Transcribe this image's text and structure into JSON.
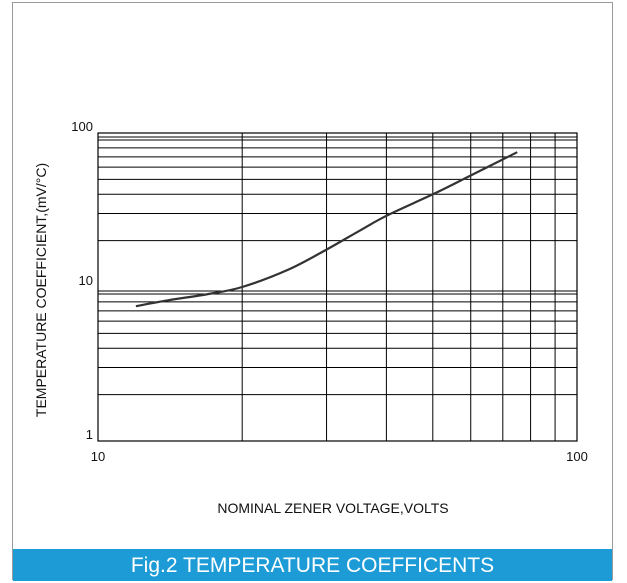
{
  "caption": "Fig.2 TEMPERATURE COEFFICENTS",
  "colors": {
    "caption_bg": "#1c9bd7",
    "grid": "#000000",
    "curve": "#333333",
    "border": "#9a9a9a"
  },
  "chart_data": {
    "type": "line",
    "title": "",
    "xlabel": "NOMINAL ZENER VOLTAGE,VOLTS",
    "ylabel": "TEMPERATURE COEFFICIENT,(mV/°C)",
    "xscale": "log",
    "yscale": "log",
    "xlim": [
      10,
      100
    ],
    "ylim": [
      1,
      100
    ],
    "grid": true,
    "x_ticks": [
      10,
      100
    ],
    "x_tick_labels": [
      "10",
      "100"
    ],
    "y_ticks": [
      1,
      10,
      100
    ],
    "y_tick_labels": [
      "1",
      "10",
      "100"
    ],
    "series": [
      {
        "x": [
          12,
          14,
          17,
          20,
          25,
          30,
          35,
          40,
          50,
          60,
          75
        ],
        "y": [
          7.5,
          8.2,
          9.0,
          10.0,
          13.0,
          17.5,
          23,
          29,
          40,
          53,
          75
        ]
      }
    ]
  }
}
